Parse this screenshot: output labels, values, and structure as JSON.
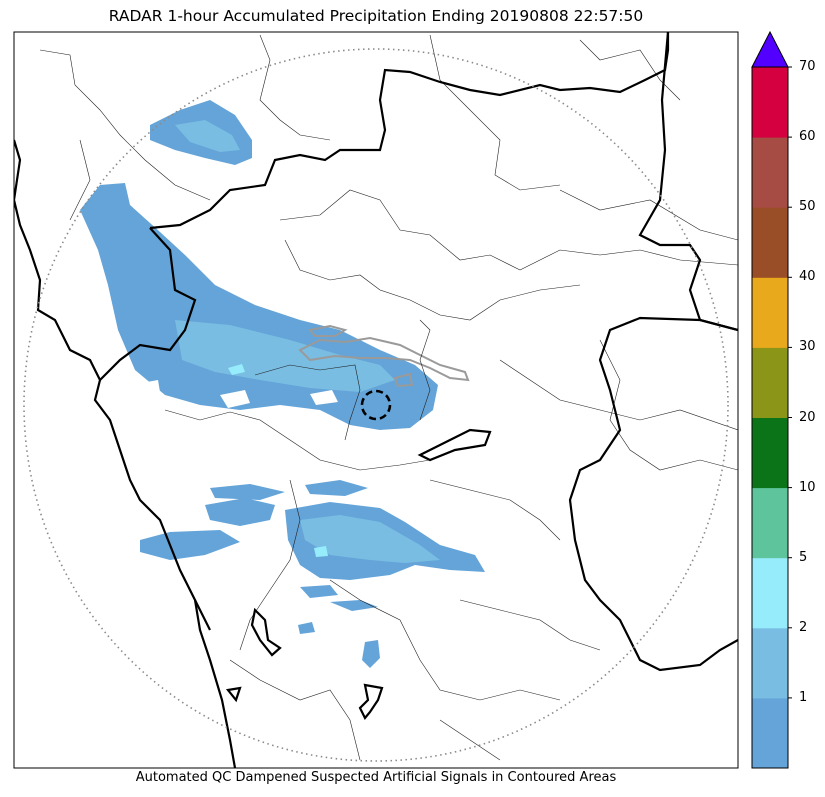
{
  "title": "RADAR 1-hour Accumulated Precipitation Ending 20190808 22:57:50",
  "footer": "Automated QC Dampened Suspected Artificial Signals in Contoured Areas",
  "colorbar": {
    "ticks": [
      "1",
      "2",
      "5",
      "10",
      "20",
      "30",
      "40",
      "50",
      "60",
      "70"
    ],
    "bins": [
      {
        "color": "#64a4d8"
      },
      {
        "color": "#79bde3"
      },
      {
        "color": "#96ecfb"
      },
      {
        "color": "#5ec49b"
      },
      {
        "color": "#0c7418"
      },
      {
        "color": "#8b9518"
      },
      {
        "color": "#e9a91d"
      },
      {
        "color": "#9a4e27"
      },
      {
        "color": "#a74c45"
      },
      {
        "color": "#d4003f"
      }
    ],
    "overflow_color": "#5200ff"
  },
  "map": {
    "precip_colors": {
      "light": "#64a4d8",
      "moderate": "#79bde3",
      "heavy": "#96ecfb"
    },
    "coastline_color": "#000000",
    "range_ring_color": "#8a8a8a",
    "radar_site_marker": "dashed-circle"
  }
}
